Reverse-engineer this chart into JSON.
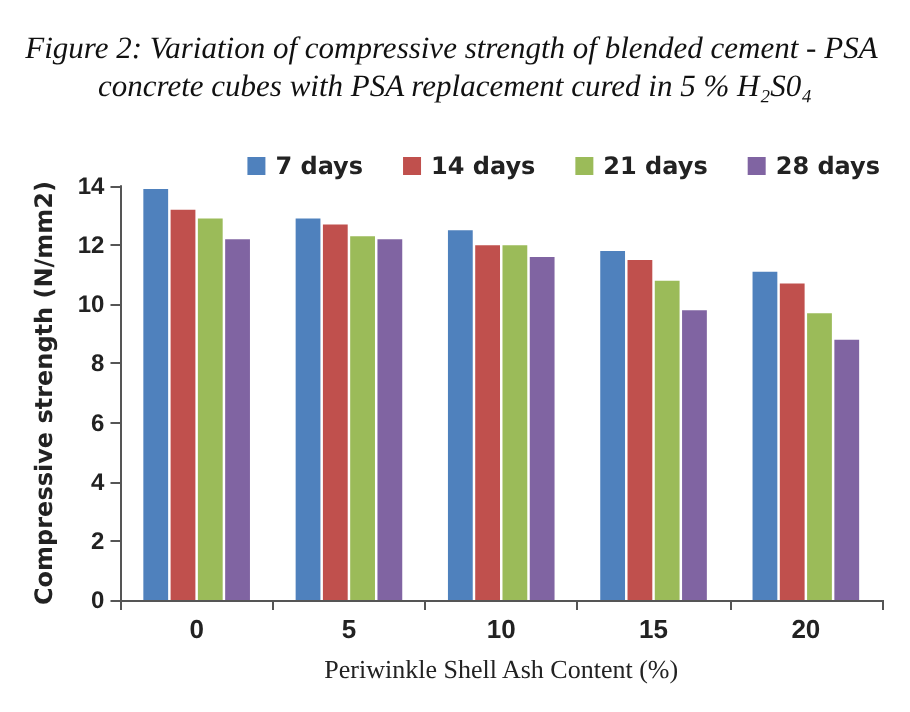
{
  "chart_data": {
    "type": "bar",
    "title": "Figure 2: Variation of compressive strength of blended cement - PSA concrete cubes with PSA replacement cured in 5 % H₂S0₄",
    "xlabel": "Periwinkle Shell Ash Content (%)",
    "ylabel": "Compressive strength (N/mm2)",
    "categories": [
      "0",
      "5",
      "10",
      "15",
      "20"
    ],
    "series": [
      {
        "name": "7 days",
        "color": "#4f81bd",
        "values": [
          13.9,
          12.9,
          12.5,
          11.8,
          11.1
        ]
      },
      {
        "name": "14 days",
        "color": "#c0504d",
        "values": [
          13.2,
          12.7,
          12.0,
          11.5,
          10.7
        ]
      },
      {
        "name": "21 days",
        "color": "#9bbb59",
        "values": [
          12.9,
          12.3,
          12.0,
          10.8,
          9.7
        ]
      },
      {
        "name": "28 days",
        "color": "#8064a2",
        "values": [
          12.2,
          12.2,
          11.6,
          9.8,
          8.8
        ]
      }
    ],
    "ylim": [
      0,
      14
    ],
    "yticks": [
      0,
      2,
      4,
      6,
      8,
      10,
      12,
      14
    ],
    "grid": false,
    "legend": "top right"
  }
}
